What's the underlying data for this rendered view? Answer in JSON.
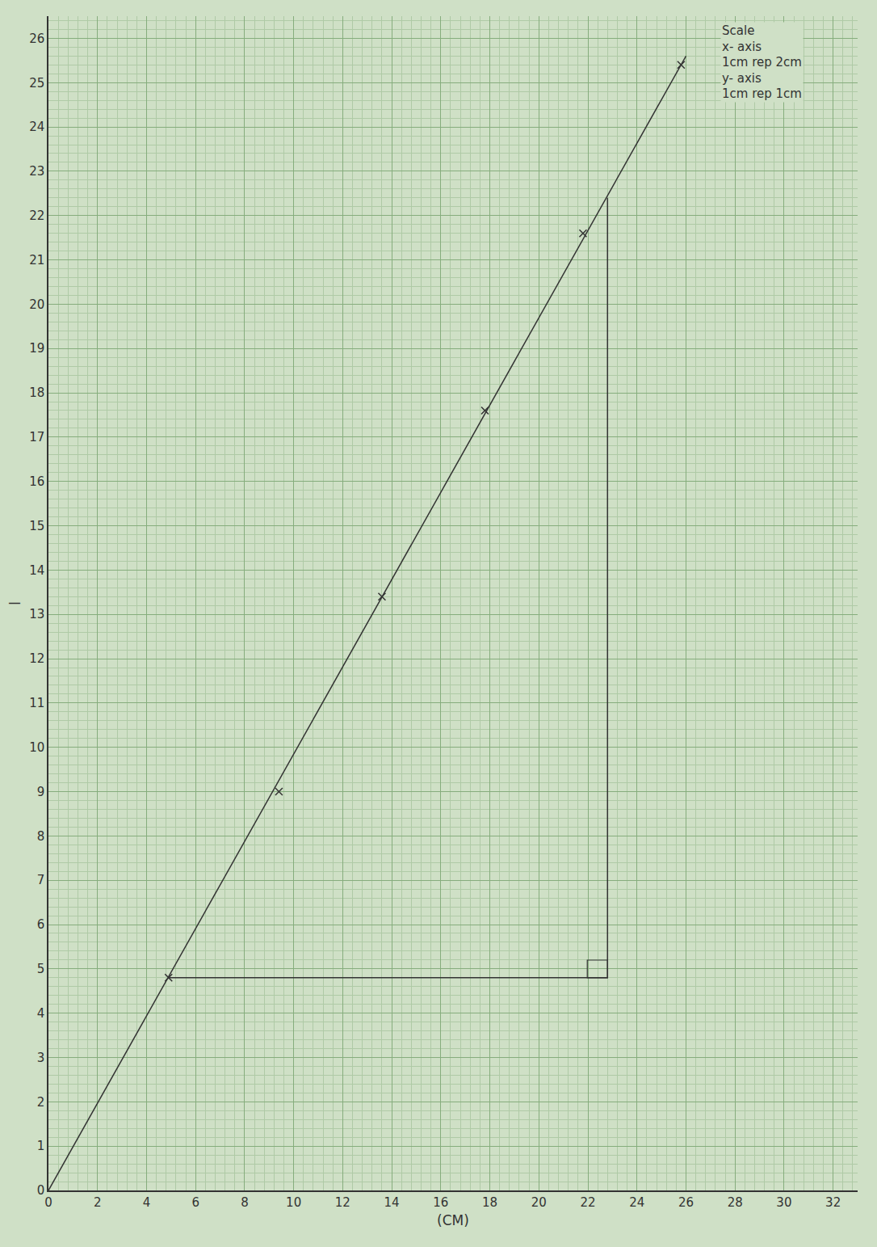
{
  "chart_data": {
    "type": "scatter",
    "x_label": "(CM)",
    "y_label": "l",
    "annotation": [
      "Scale",
      "x- axis",
      "1cm rep 2cm",
      "y- axis",
      "1cm rep 1cm"
    ],
    "series": [
      {
        "type": "scatter",
        "marker": "x",
        "color": "#333333",
        "x": [
          4.9,
          9.4,
          13.6,
          17.8,
          21.8,
          25.8
        ],
        "values": [
          4.8,
          9.0,
          13.4,
          17.6,
          21.6,
          25.4
        ]
      },
      {
        "type": "line",
        "line_style": "solid",
        "color": "#333333",
        "x": [
          0,
          26
        ],
        "values": [
          0,
          25.6
        ]
      },
      {
        "type": "line",
        "line_style": "solid",
        "color": "#333333",
        "x": [
          4.9,
          22.8,
          22.8
        ],
        "values": [
          4.8,
          4.8,
          22.4
        ]
      }
    ],
    "xlim": [
      0,
      33
    ],
    "ylim": [
      0,
      26.5
    ],
    "xticks": [
      0,
      2,
      4,
      6,
      8,
      10,
      12,
      14,
      16,
      18,
      20,
      22,
      24,
      26,
      28,
      30,
      32
    ],
    "yticks": [
      0,
      1,
      2,
      3,
      4,
      5,
      6,
      7,
      8,
      9,
      10,
      11,
      12,
      13,
      14,
      15,
      16,
      17,
      18,
      19,
      20,
      21,
      22,
      23,
      24,
      25,
      26
    ],
    "grid": true
  }
}
